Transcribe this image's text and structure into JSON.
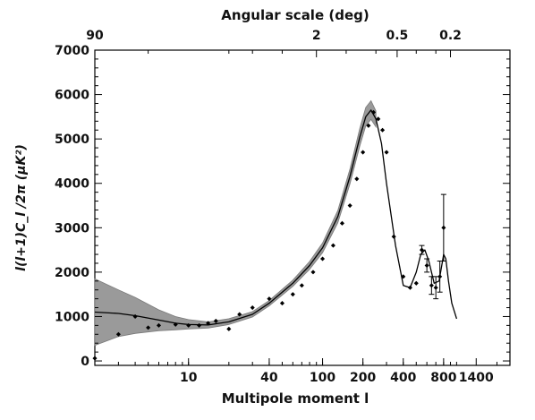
{
  "chart_data": {
    "type": "scatter",
    "xscale": "log",
    "xlim": [
      2,
      2500
    ],
    "ylim": [
      -100,
      7000
    ],
    "xlabel": "Multipole moment l",
    "ylabel": "l(l+1)C_l /2π (µK²)",
    "top_axis_label": "Angular scale (deg)",
    "x_ticks": [
      10,
      40,
      100,
      200,
      400,
      800,
      1400
    ],
    "y_ticks": [
      0,
      1000,
      2000,
      3000,
      4000,
      5000,
      6000,
      7000
    ],
    "top_ticks": [
      {
        "label": "90",
        "l": 2
      },
      {
        "label": "2",
        "l": 90
      },
      {
        "label": "0.5",
        "l": 360
      },
      {
        "label": "0.2",
        "l": 900
      }
    ],
    "series": [
      {
        "kind": "points",
        "x": [
          2,
          3,
          4,
          5,
          6,
          8,
          10,
          12,
          14,
          16,
          20,
          24,
          30,
          40,
          50,
          60,
          70,
          85,
          100,
          120,
          140,
          160,
          180,
          200,
          220,
          240,
          260,
          280,
          300,
          340,
          400,
          450,
          500,
          550,
          600,
          650,
          700,
          750,
          800
        ],
        "y": [
          60,
          600,
          1000,
          750,
          800,
          820,
          800,
          800,
          850,
          900,
          720,
          1050,
          1200,
          1400,
          1300,
          1500,
          1700,
          2000,
          2300,
          2600,
          3100,
          3500,
          4100,
          4700,
          5300,
          5600,
          5450,
          5200,
          4700,
          2800,
          1900,
          1650,
          1750,
          2500,
          2150,
          1700,
          1650,
          1900,
          3000
        ],
        "yerr": [
          0,
          0,
          0,
          0,
          0,
          0,
          0,
          0,
          0,
          0,
          0,
          0,
          0,
          0,
          0,
          0,
          0,
          0,
          0,
          0,
          0,
          0,
          0,
          0,
          0,
          0,
          0,
          0,
          0,
          0,
          0,
          0,
          0,
          100,
          150,
          200,
          250,
          350,
          750
        ]
      },
      {
        "kind": "model",
        "x": [
          2,
          3,
          4,
          6,
          8,
          10,
          14,
          20,
          30,
          40,
          60,
          80,
          100,
          130,
          160,
          190,
          210,
          230,
          250,
          275,
          300,
          350,
          400,
          450,
          500,
          540,
          580,
          620,
          680,
          740,
          780,
          800,
          830,
          870,
          920,
          1000
        ],
        "y": [
          1100,
          1070,
          1020,
          920,
          850,
          820,
          810,
          880,
          1050,
          1300,
          1750,
          2150,
          2550,
          3250,
          4150,
          5050,
          5500,
          5650,
          5450,
          4900,
          4000,
          2600,
          1700,
          1650,
          2000,
          2400,
          2500,
          2250,
          1750,
          1800,
          2200,
          2400,
          2300,
          1800,
          1300,
          950
        ]
      }
    ],
    "band": {
      "x": [
        2,
        3,
        4,
        6,
        8,
        10,
        14,
        20,
        30,
        40,
        60,
        80,
        100,
        130,
        160,
        190,
        210,
        230,
        250
      ],
      "lower": [
        350,
        550,
        620,
        680,
        700,
        720,
        740,
        820,
        990,
        1240,
        1680,
        2060,
        2440,
        3110,
        3980,
        4850,
        5290,
        5440,
        5270
      ],
      "upper": [
        1850,
        1600,
        1430,
        1150,
        1000,
        930,
        880,
        950,
        1110,
        1360,
        1820,
        2240,
        2660,
        3390,
        4320,
        5250,
        5710,
        5860,
        5630
      ]
    }
  }
}
